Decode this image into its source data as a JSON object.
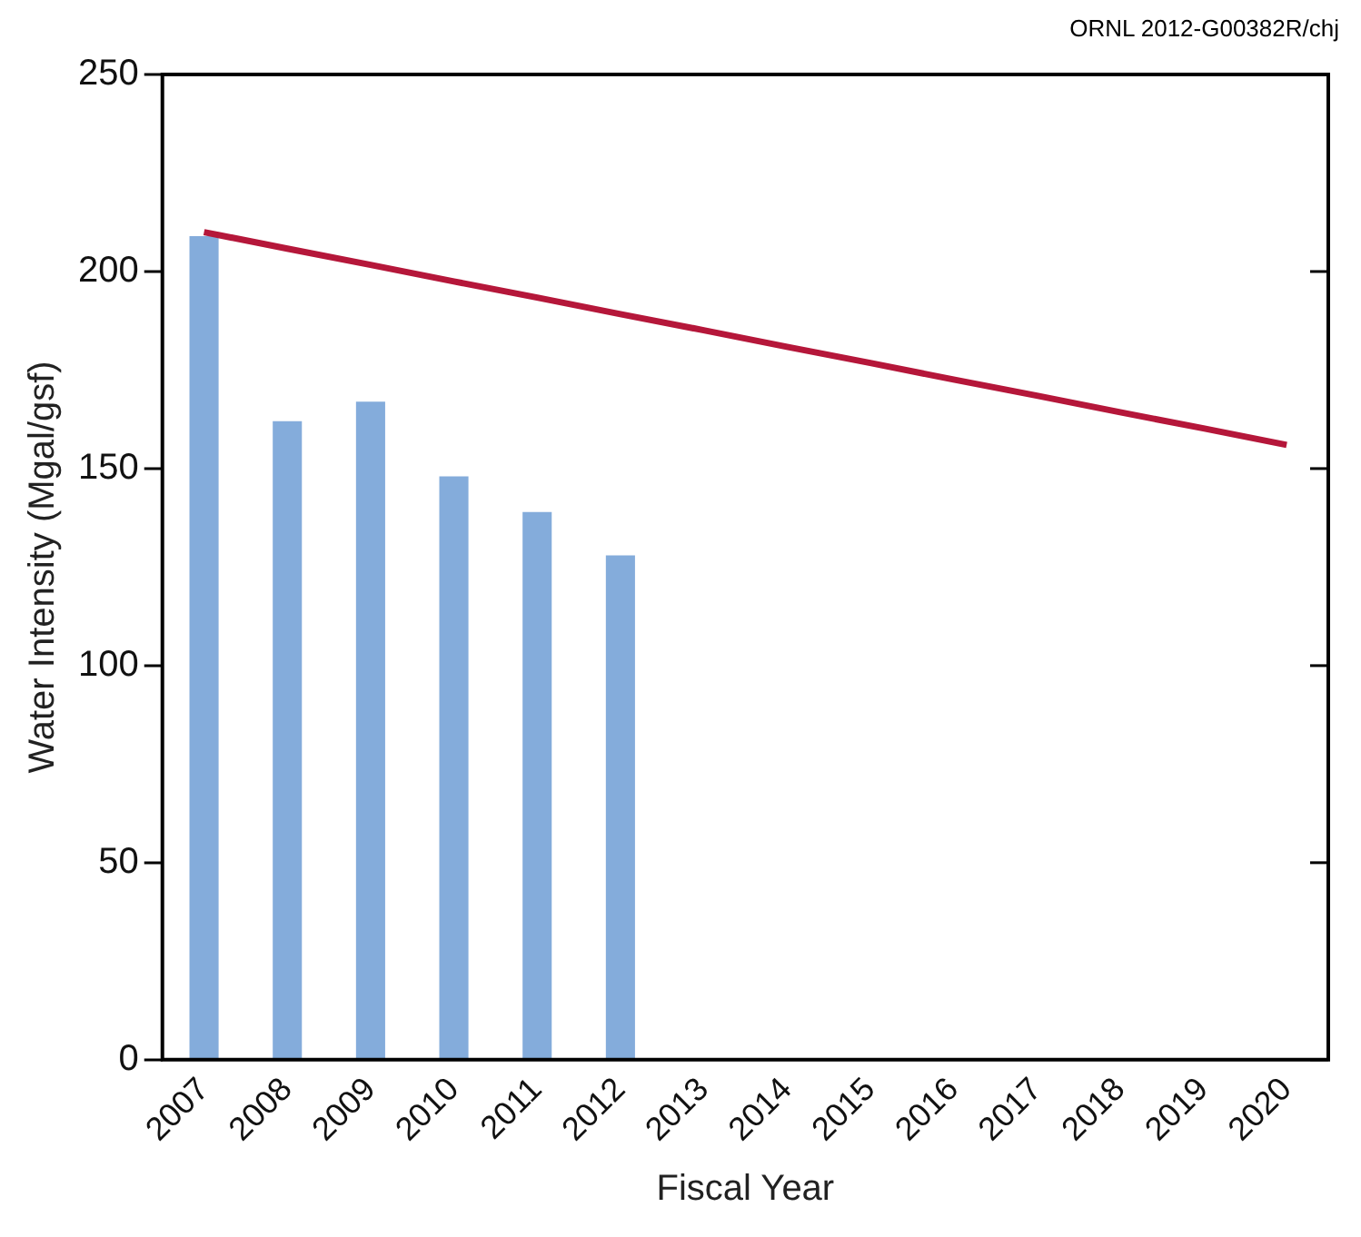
{
  "chart_data": {
    "type": "bar",
    "annotations": [
      "ORNL 2012-G00382R/chj"
    ],
    "xlabel": "Fiscal Year",
    "ylabel": "Water Intensity (Mgal/gsf)",
    "categories": [
      "2007",
      "2008",
      "2009",
      "2010",
      "2011",
      "2012",
      "2013",
      "2014",
      "2015",
      "2016",
      "2017",
      "2018",
      "2019",
      "2020"
    ],
    "series": [
      {
        "color": "#84acdb",
        "values": [
          209,
          162,
          167,
          148,
          139,
          128,
          null,
          null,
          null,
          null,
          null,
          null,
          null,
          null
        ]
      },
      {
        "type": "line",
        "color": "#b5173a",
        "values": [
          210,
          205.8,
          201.7,
          197.5,
          193.4,
          189.2,
          185.1,
          180.9,
          176.8,
          172.6,
          168.5,
          164.3,
          160.2,
          156
        ]
      }
    ],
    "ylim": [
      0,
      250
    ],
    "yticks": [
      0,
      50,
      100,
      150,
      200,
      250
    ],
    "grid": false,
    "legend": false,
    "marker": "none"
  }
}
